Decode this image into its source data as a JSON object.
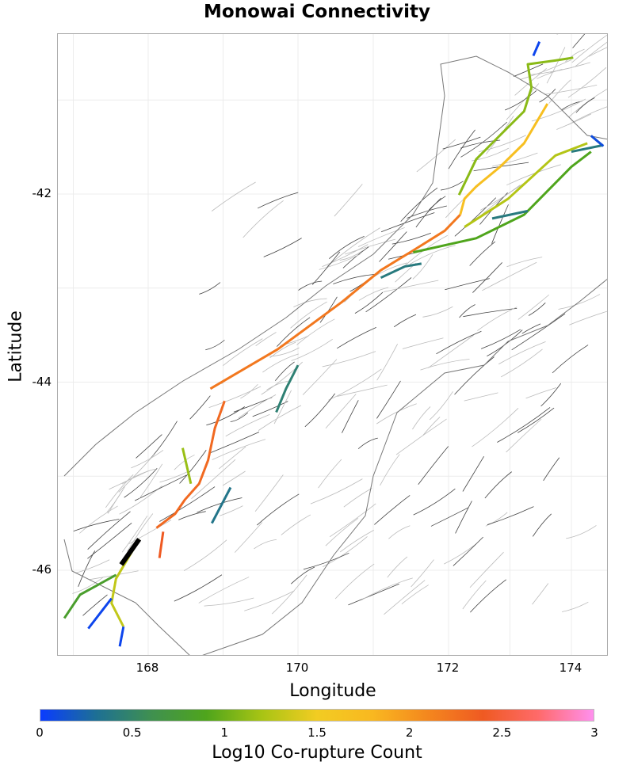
{
  "chart_data": {
    "type": "map",
    "title": "Monowai Connectivity",
    "xlabel": "Longitude",
    "ylabel": "Latitude",
    "x_ticks": [
      168,
      170,
      172,
      174
    ],
    "y_ticks": [
      -42,
      -44,
      -46
    ],
    "x_tick_labels": [
      "168",
      "170",
      "172",
      "174"
    ],
    "y_tick_labels": [
      "-42",
      "-44",
      "-46"
    ],
    "grid": true,
    "colorbar": {
      "label": "Log10 Co-rupture Count",
      "range": [
        0,
        3
      ],
      "ticks": [
        "0",
        "0.5",
        "1",
        "1.5",
        "2",
        "2.5",
        "3"
      ],
      "colors": [
        "#0a3cff",
        "#1d6f95",
        "#3f9050",
        "#4fa51c",
        "#a8c414",
        "#f2cc22",
        "#f9b820",
        "#f4871e",
        "#ef5a22",
        "#ff6a6a",
        "#ff90ee"
      ]
    },
    "target_fault": {
      "name": "Monowai",
      "color": "#000000",
      "path": [
        [
          167.64,
          -45.94
        ],
        [
          167.88,
          -45.67
        ]
      ]
    },
    "ruptures": [
      {
        "value": 2.2,
        "path": [
          [
            168.83,
            -44.07
          ],
          [
            169.73,
            -43.65
          ],
          [
            170.58,
            -43.15
          ],
          [
            171.1,
            -42.81
          ],
          [
            171.53,
            -42.6
          ],
          [
            171.95,
            -42.39
          ],
          [
            172.19,
            -42.22
          ]
        ]
      },
      {
        "value": 1.7,
        "path": [
          [
            172.19,
            -42.22
          ],
          [
            172.26,
            -42.05
          ],
          [
            172.45,
            -41.92
          ],
          [
            172.84,
            -41.71
          ],
          [
            173.23,
            -41.46
          ],
          [
            173.61,
            -41.04
          ]
        ]
      },
      {
        "value": 1.1,
        "path": [
          [
            172.17,
            -42.01
          ],
          [
            172.45,
            -41.63
          ],
          [
            172.77,
            -41.42
          ],
          [
            173.23,
            -41.12
          ],
          [
            173.35,
            -40.87
          ],
          [
            173.29,
            -40.62
          ],
          [
            173.74,
            -40.58
          ],
          [
            174.03,
            -40.55
          ]
        ]
      },
      {
        "value": 0.9,
        "path": [
          [
            171.53,
            -42.62
          ],
          [
            172.45,
            -42.47
          ],
          [
            173.23,
            -42.22
          ],
          [
            174.0,
            -41.71
          ],
          [
            174.32,
            -41.55
          ]
        ]
      },
      {
        "value": 1.25,
        "path": [
          [
            172.26,
            -42.35
          ],
          [
            172.97,
            -42.05
          ],
          [
            173.74,
            -41.59
          ],
          [
            174.26,
            -41.46
          ]
        ]
      },
      {
        "value": 0.4,
        "path": [
          [
            172.71,
            -42.26
          ],
          [
            173.29,
            -42.18
          ]
        ]
      },
      {
        "value": 0.4,
        "path": [
          [
            174.0,
            -41.55
          ],
          [
            174.52,
            -41.48
          ]
        ]
      },
      {
        "value": 0.05,
        "path": [
          [
            173.48,
            -40.38
          ],
          [
            173.38,
            -40.53
          ]
        ]
      },
      {
        "value": 0.1,
        "path": [
          [
            174.32,
            -41.38
          ],
          [
            174.52,
            -41.49
          ]
        ]
      },
      {
        "value": 2.3,
        "path": [
          [
            169.02,
            -44.2
          ],
          [
            168.89,
            -44.49
          ],
          [
            168.8,
            -44.83
          ],
          [
            168.68,
            -45.08
          ],
          [
            168.49,
            -45.25
          ],
          [
            168.36,
            -45.4
          ],
          [
            168.11,
            -45.55
          ]
        ]
      },
      {
        "value": 2.4,
        "path": [
          [
            168.2,
            -45.59
          ],
          [
            168.15,
            -45.87
          ]
        ]
      },
      {
        "value": 1.15,
        "path": [
          [
            168.46,
            -44.7
          ],
          [
            168.57,
            -45.08
          ]
        ]
      },
      {
        "value": 1.3,
        "path": [
          [
            167.88,
            -45.67
          ],
          [
            167.57,
            -46.09
          ],
          [
            167.51,
            -46.35
          ],
          [
            167.67,
            -46.6
          ]
        ]
      },
      {
        "value": 0.8,
        "path": [
          [
            167.57,
            -46.05
          ],
          [
            167.09,
            -46.26
          ],
          [
            166.88,
            -46.51
          ]
        ]
      },
      {
        "value": 0.05,
        "path": [
          [
            167.2,
            -46.62
          ],
          [
            167.51,
            -46.3
          ]
        ]
      },
      {
        "value": 0.05,
        "path": [
          [
            167.62,
            -46.81
          ],
          [
            167.67,
            -46.6
          ]
        ]
      },
      {
        "value": 0.35,
        "path": [
          [
            168.85,
            -45.5
          ],
          [
            169.1,
            -45.12
          ]
        ]
      },
      {
        "value": 0.45,
        "path": [
          [
            170.0,
            -43.82
          ],
          [
            169.84,
            -44.07
          ],
          [
            169.71,
            -44.32
          ]
        ]
      },
      {
        "value": 0.4,
        "path": [
          [
            171.1,
            -42.89
          ],
          [
            171.42,
            -42.77
          ],
          [
            171.64,
            -42.74
          ]
        ]
      }
    ]
  }
}
